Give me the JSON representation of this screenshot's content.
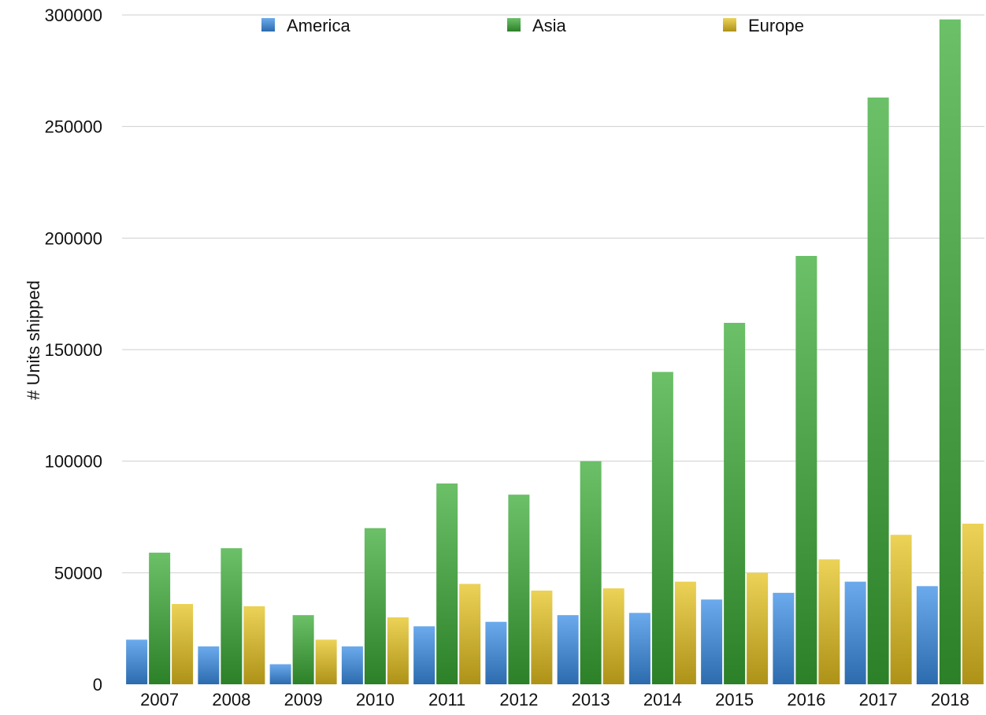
{
  "chart_data": {
    "type": "bar",
    "title": "",
    "xlabel": "",
    "ylabel": "# Units shipped",
    "categories": [
      "2007",
      "2008",
      "2009",
      "2010",
      "2011",
      "2012",
      "2013",
      "2014",
      "2015",
      "2016",
      "2017",
      "2018"
    ],
    "series": [
      {
        "name": "America",
        "color": "#3a8ee6",
        "values": [
          20000,
          17000,
          9000,
          17000,
          26000,
          28000,
          31000,
          32000,
          38000,
          41000,
          46000,
          44000
        ]
      },
      {
        "name": "Asia",
        "color": "#3aab35",
        "values": [
          59000,
          61000,
          31000,
          70000,
          90000,
          85000,
          100000,
          140000,
          162000,
          192000,
          263000,
          298000
        ]
      },
      {
        "name": "Europe",
        "color": "#e6c31e",
        "values": [
          36000,
          35000,
          20000,
          30000,
          45000,
          42000,
          43000,
          46000,
          50000,
          56000,
          67000,
          72000
        ]
      }
    ],
    "ylim": [
      0,
      300000
    ],
    "yticks": [
      "0",
      "50000",
      "100000",
      "150000",
      "200000",
      "250000",
      "300000"
    ],
    "grid": true,
    "legend_position": "top"
  }
}
